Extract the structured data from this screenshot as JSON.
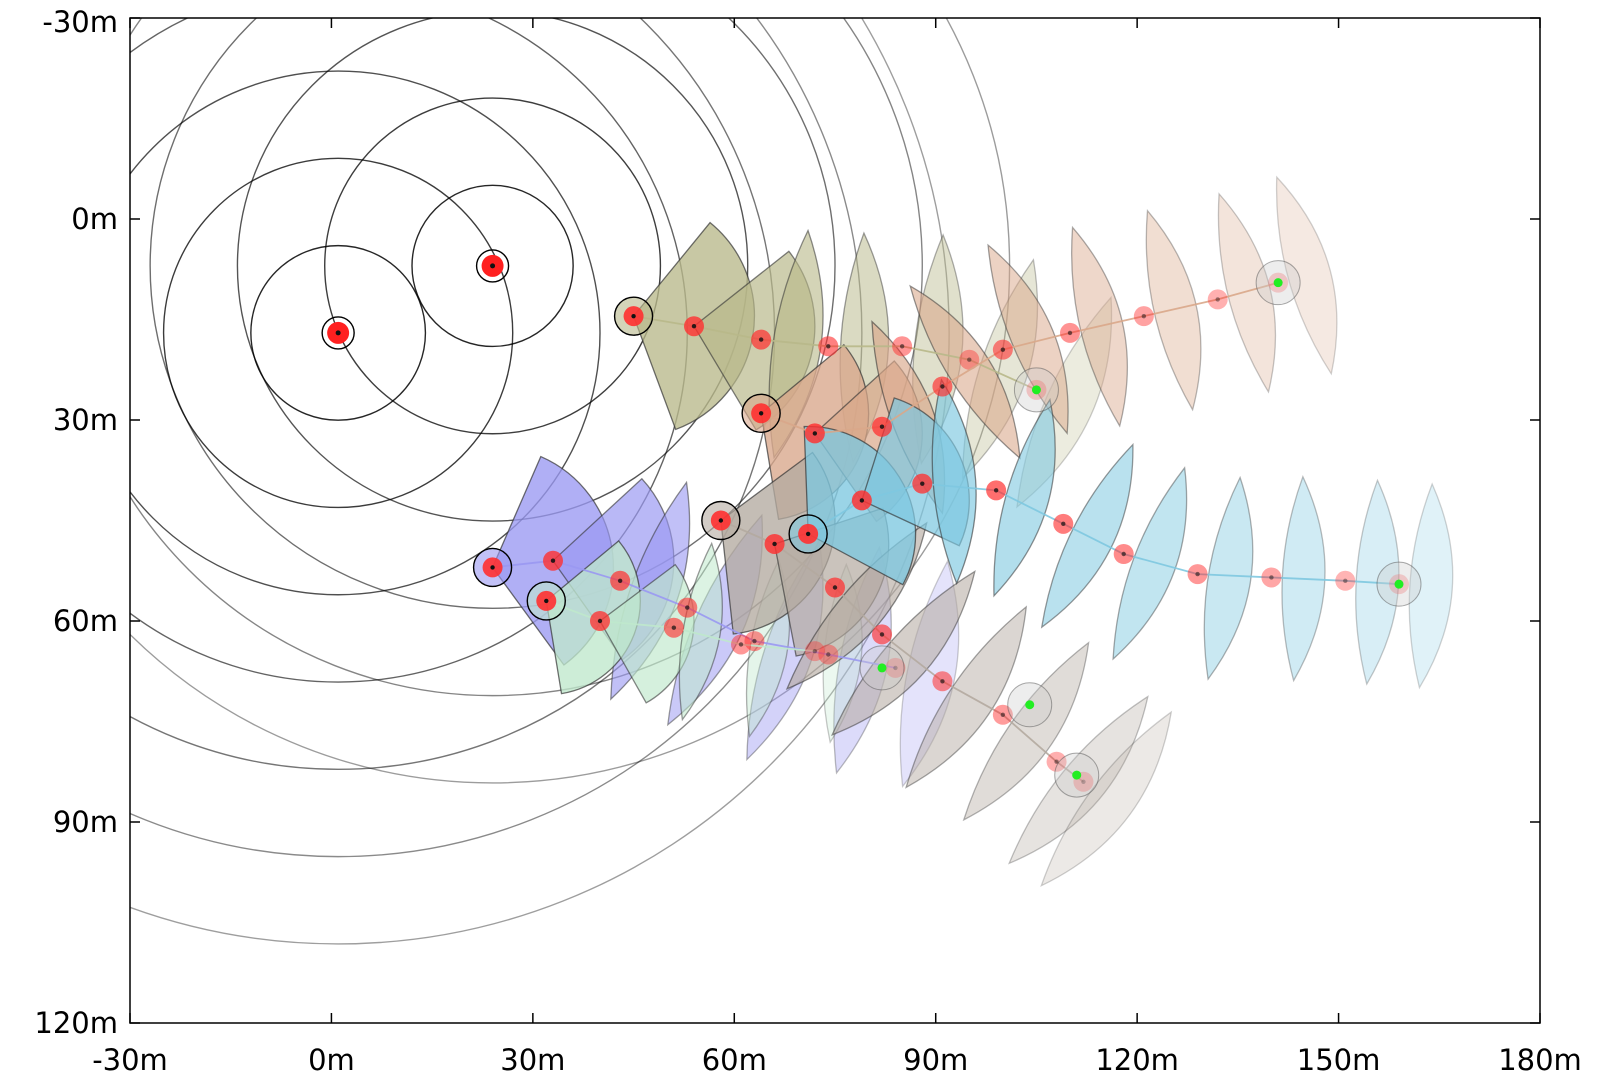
{
  "chart_data": {
    "type": "scatter",
    "title": "",
    "xlabel": "",
    "ylabel": "",
    "xlim": [
      -30,
      180
    ],
    "ylim": [
      -30,
      120
    ],
    "y_inverted": true,
    "grid": false,
    "legend": "none",
    "x_ticks": [
      -30,
      0,
      30,
      60,
      90,
      120,
      150,
      180
    ],
    "y_ticks": [
      -30,
      0,
      30,
      60,
      90,
      120
    ],
    "x_tick_labels": [
      "-30m",
      "0m",
      "30m",
      "60m",
      "90m",
      "120m",
      "150m",
      "180m"
    ],
    "y_tick_labels": [
      "-30m",
      "0m",
      "30m",
      "60m",
      "90m",
      "120m"
    ],
    "anchors": [
      {
        "x": 1,
        "y": 17,
        "rings": [
          13,
          26,
          39,
          52,
          65,
          78,
          91
        ]
      },
      {
        "x": 24,
        "y": 7,
        "rings": [
          12,
          25,
          38,
          51,
          64,
          77
        ]
      }
    ],
    "tracks": [
      {
        "color": "#b8b88a",
        "sector_r": 18,
        "pts": [
          [
            45,
            14.5
          ],
          [
            54,
            16
          ],
          [
            64,
            18
          ],
          [
            74,
            19
          ],
          [
            85,
            19
          ],
          [
            95,
            21
          ],
          [
            105,
            25.5
          ]
        ]
      },
      {
        "color": "#d9a78a",
        "sector_r": 16,
        "pts": [
          [
            64,
            29
          ],
          [
            72,
            32
          ],
          [
            82,
            31
          ],
          [
            91,
            25
          ],
          [
            100,
            19.5
          ],
          [
            110,
            17
          ],
          [
            121,
            14.5
          ],
          [
            132,
            12
          ],
          [
            141,
            9.5
          ]
        ]
      },
      {
        "color": "#9a98f2",
        "sector_r": 18,
        "pts": [
          [
            24,
            52
          ],
          [
            33,
            51
          ],
          [
            43,
            54
          ],
          [
            53,
            58
          ],
          [
            63,
            63
          ],
          [
            74,
            65
          ],
          [
            84,
            67
          ]
        ]
      },
      {
        "color": "#bfe8cc",
        "sector_r": 14,
        "pts": [
          [
            32,
            57
          ],
          [
            40,
            60
          ],
          [
            51,
            61
          ],
          [
            61,
            63.5
          ],
          [
            72,
            64.5
          ]
        ]
      },
      {
        "color": "#b4aaa0",
        "sector_r": 17,
        "pts": [
          [
            58,
            45
          ],
          [
            66,
            48.5
          ],
          [
            75,
            55
          ],
          [
            82,
            62
          ],
          [
            91,
            69
          ],
          [
            100,
            74
          ],
          [
            108,
            81
          ],
          [
            112,
            84
          ]
        ]
      },
      {
        "color": "#7ec8e0",
        "sector_r": 16,
        "pts": [
          [
            71,
            47
          ],
          [
            79,
            42
          ],
          [
            88,
            39.5
          ],
          [
            99,
            40.5
          ],
          [
            109,
            45.5
          ],
          [
            118,
            50
          ],
          [
            129,
            53
          ],
          [
            140,
            53.5
          ],
          [
            151,
            54
          ],
          [
            159,
            54.5
          ]
        ]
      }
    ],
    "markers": [
      {
        "x": 105,
        "y": 25.5
      },
      {
        "x": 141,
        "y": 9.5
      },
      {
        "x": 82,
        "y": 67
      },
      {
        "x": 104,
        "y": 72.5
      },
      {
        "x": 111,
        "y": 83
      },
      {
        "x": 159,
        "y": 54.5
      }
    ]
  }
}
